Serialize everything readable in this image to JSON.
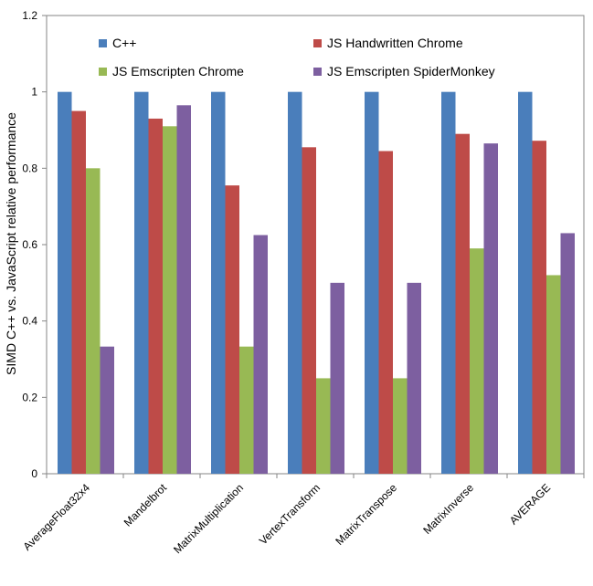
{
  "chart_data": {
    "type": "bar",
    "title": "",
    "xlabel": "",
    "ylabel": "SIMD C++ vs. JavaScript relative performance",
    "ylim": [
      0,
      1.2
    ],
    "yticks": [
      "0",
      "0.2",
      "0.4",
      "0.6",
      "0.8",
      "1",
      "1.2"
    ],
    "grid": false,
    "legend_position": "top",
    "categories": [
      "AverageFloat32x4",
      "Mandelbrot",
      "MatrixMultiplication",
      "VertexTransform",
      "MatrixTranspose",
      "MatrixInverse",
      "AVERAGE"
    ],
    "series": [
      {
        "name": "C++",
        "color": "#4a7ebb",
        "values": [
          1,
          1,
          1,
          1,
          1,
          1,
          1
        ]
      },
      {
        "name": "JS Handwritten Chrome",
        "color": "#be4b48",
        "values": [
          0.95,
          0.93,
          0.755,
          0.855,
          0.845,
          0.89,
          0.872
        ]
      },
      {
        "name": "JS Emscripten Chrome",
        "color": "#98b954",
        "values": [
          0.8,
          0.91,
          0.333,
          0.25,
          0.25,
          0.59,
          0.52
        ]
      },
      {
        "name": "JS Emscripten SpiderMonkey",
        "color": "#7d5fa0",
        "values": [
          0.333,
          0.965,
          0.625,
          0.5,
          0.5,
          0.865,
          0.63
        ]
      }
    ]
  }
}
